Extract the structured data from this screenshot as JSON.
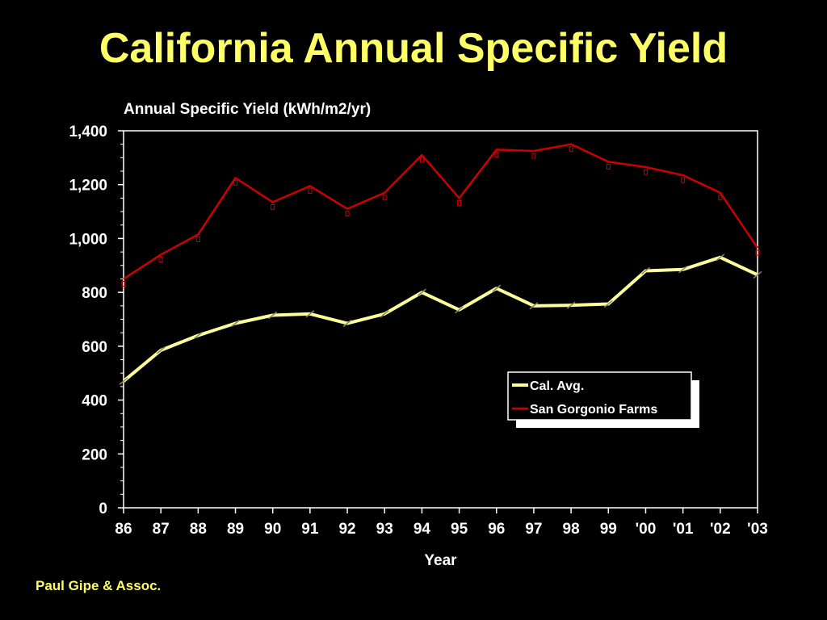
{
  "slide": {
    "title": "California Annual Specific Yield",
    "footer": "Paul Gipe & Assoc."
  },
  "colors": {
    "background": "#000000",
    "title": "#ffff66",
    "axis": "#ffffff",
    "series_cal_avg": "#ffff99",
    "series_san_gorgonio": "#cc0000"
  },
  "chart_data": {
    "type": "line",
    "ylabel": "Annual Specific Yield (kWh/m2/yr)",
    "xlabel": "Year",
    "categories": [
      "86",
      "87",
      "88",
      "89",
      "90",
      "91",
      "92",
      "93",
      "94",
      "95",
      "96",
      "97",
      "98",
      "99",
      "'00",
      "'01",
      "'02",
      "'03"
    ],
    "ylim": [
      0,
      1400
    ],
    "yticks": [
      "0",
      "200",
      "400",
      "600",
      "800",
      "1,000",
      "1,200",
      "1,400"
    ],
    "ytick_values": [
      0,
      200,
      400,
      600,
      800,
      1000,
      1200,
      1400
    ],
    "series": [
      {
        "name": "Cal. Avg.",
        "color": "#ffff99",
        "values": [
          470,
          585,
          640,
          685,
          715,
          720,
          685,
          720,
          800,
          735,
          815,
          750,
          752,
          757,
          880,
          885,
          930,
          865
        ]
      },
      {
        "name": "San Gorgonio Farms",
        "color": "#cc0000",
        "values": [
          850,
          940,
          1015,
          1225,
          1135,
          1195,
          1110,
          1170,
          1310,
          1150,
          1330,
          1325,
          1350,
          1285,
          1265,
          1235,
          1170,
          965
        ]
      }
    ],
    "grid": false,
    "legend": "lower-right"
  }
}
